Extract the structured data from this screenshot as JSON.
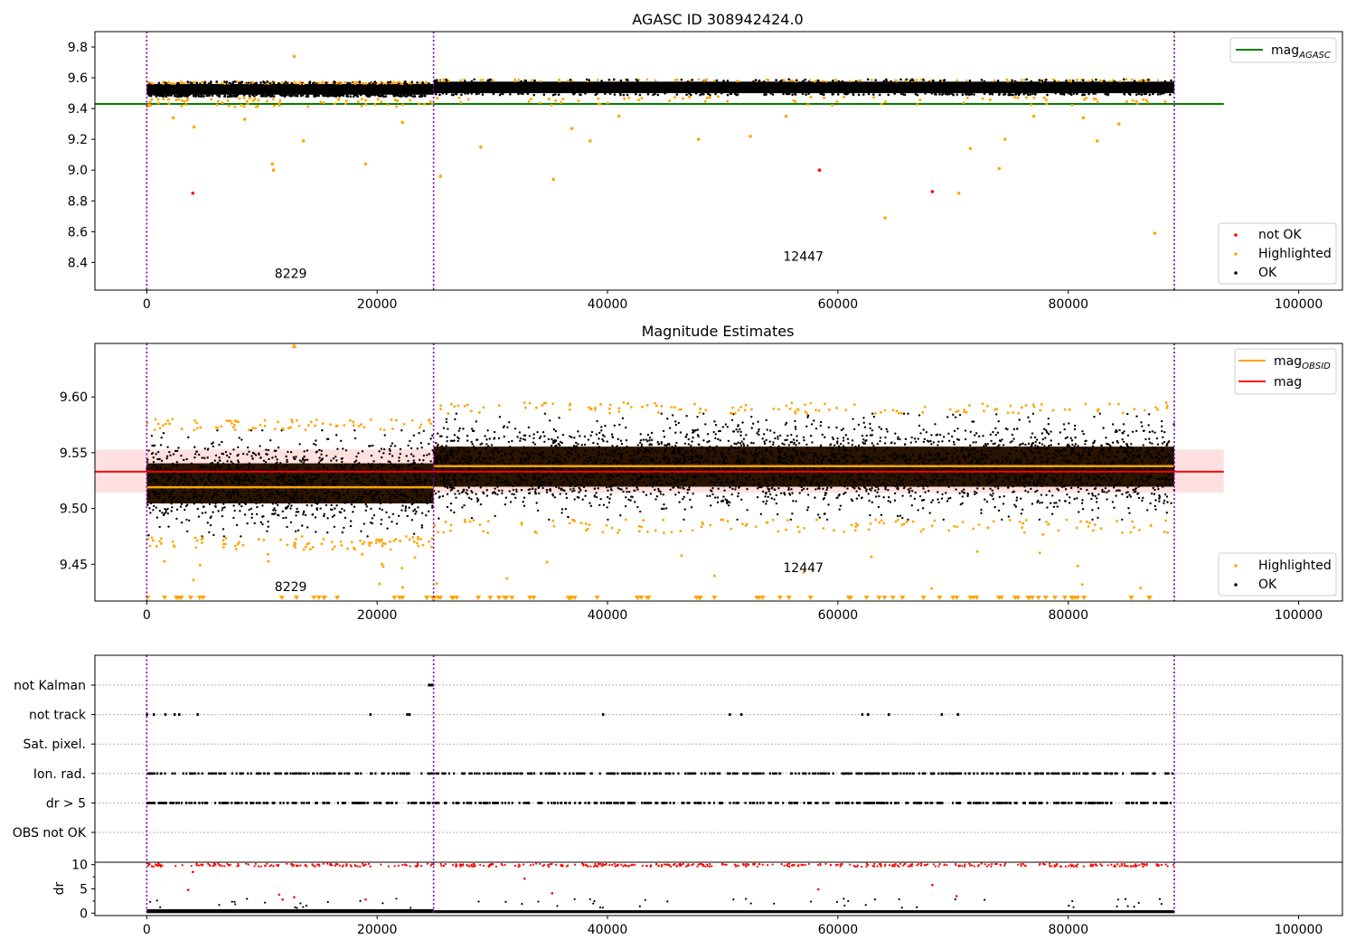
{
  "chart_data": [
    {
      "type": "scatter",
      "title": "AGASC ID 308942424.0",
      "xlim": [
        -4500,
        103800
      ],
      "ylim": [
        8.22,
        9.9
      ],
      "xticks": [
        "0",
        "20000",
        "40000",
        "60000",
        "80000",
        "100000"
      ],
      "yticks": [
        "8.4",
        "8.6",
        "8.8",
        "9.0",
        "9.2",
        "9.4",
        "9.6",
        "9.8"
      ],
      "obsid_boundaries": [
        0,
        24900,
        89200
      ],
      "obsid_labels": [
        {
          "text": "8229",
          "x": 12500,
          "y": 8.3
        },
        {
          "text": "12447",
          "x": 57000,
          "y": 8.41
        }
      ],
      "series": [
        {
          "name": "not OK",
          "color": "#ff0000",
          "points": [
            [
              4000,
              8.85
            ],
            [
              58400,
              9.0
            ],
            [
              68200,
              8.86
            ]
          ]
        },
        {
          "name": "Highlighted",
          "color": "#ffa500",
          "points": [
            [
              12800,
              9.74
            ],
            [
              10900,
              9.04
            ],
            [
              11000,
              9.0
            ],
            [
              19000,
              9.04
            ],
            [
              13600,
              9.19
            ],
            [
              4100,
              9.28
            ],
            [
              25500,
              8.96
            ],
            [
              35300,
              8.94
            ],
            [
              29000,
              9.15
            ],
            [
              38500,
              9.19
            ],
            [
              47900,
              9.2
            ],
            [
              52400,
              9.22
            ],
            [
              64100,
              8.69
            ],
            [
              70500,
              8.85
            ],
            [
              71500,
              9.14
            ],
            [
              74000,
              9.01
            ],
            [
              74500,
              9.2
            ],
            [
              82500,
              9.19
            ],
            [
              87500,
              8.59
            ],
            [
              2300,
              9.34
            ],
            [
              8500,
              9.33
            ],
            [
              22200,
              9.31
            ],
            [
              36900,
              9.27
            ],
            [
              41000,
              9.35
            ],
            [
              55500,
              9.35
            ],
            [
              77000,
              9.35
            ],
            [
              81300,
              9.34
            ],
            [
              84400,
              9.3
            ]
          ]
        },
        {
          "name": "OK",
          "color": "#000000"
        }
      ],
      "ok_band": [
        {
          "x_start": 0,
          "x_end": 24900,
          "y_low": 9.49,
          "y_high": 9.56
        },
        {
          "x_start": 24900,
          "x_end": 89200,
          "y_low": 9.5,
          "y_high": 9.575
        }
      ],
      "lines": [
        {
          "name": "mag_AGASC",
          "color": "#008000",
          "y": 9.43,
          "x_start": -4500,
          "x_end": 93500
        }
      ],
      "legends": [
        {
          "position": "upper right",
          "entries": [
            {
              "label": "mag",
              "sub": "AGASC",
              "color": "#008000",
              "kind": "line"
            }
          ]
        },
        {
          "position": "lower right",
          "entries": [
            {
              "label": "not OK",
              "color": "#ff0000",
              "kind": "dot"
            },
            {
              "label": "Highlighted",
              "color": "#ffa500",
              "kind": "dot"
            },
            {
              "label": "OK",
              "color": "#000000",
              "kind": "dot"
            }
          ]
        }
      ]
    },
    {
      "type": "scatter",
      "title": "Magnitude Estimates",
      "xlim": [
        -4500,
        103800
      ],
      "ylim": [
        9.417,
        9.648
      ],
      "xticks": [
        "0",
        "20000",
        "40000",
        "60000",
        "80000",
        "100000"
      ],
      "yticks": [
        "9.45",
        "9.50",
        "9.55",
        "9.60"
      ],
      "obsid_boundaries": [
        0,
        24900,
        89200
      ],
      "obsid_labels": [
        {
          "text": "8229",
          "x": 12500,
          "y": 9.426
        },
        {
          "text": "12447",
          "x": 57000,
          "y": 9.443
        }
      ],
      "series": [
        {
          "name": "Highlighted",
          "color": "#ffa500"
        },
        {
          "name": "OK",
          "color": "#000000"
        }
      ],
      "ok_band": [
        {
          "x_start": 0,
          "x_end": 24900,
          "y_low": 9.475,
          "y_high": 9.57
        },
        {
          "x_start": 24900,
          "x_end": 89200,
          "y_low": 9.49,
          "y_high": 9.585
        }
      ],
      "lines": [
        {
          "name": "mag_OBSID",
          "color": "#ffa500",
          "segments": [
            {
              "x_start": 0,
              "x_end": 24900,
              "y": 9.519
            },
            {
              "x_start": 24900,
              "x_end": 89200,
              "y": 9.538
            }
          ]
        },
        {
          "name": "mag",
          "color": "#ff0000",
          "y": 9.533,
          "x_start": -4500,
          "x_end": 93500,
          "band": [
            9.514,
            9.553
          ]
        }
      ],
      "legends": [
        {
          "position": "upper right",
          "entries": [
            {
              "label": "mag",
              "sub": "OBSID",
              "color": "#ffa500",
              "kind": "line"
            },
            {
              "label": "mag",
              "color": "#ff0000",
              "kind": "line"
            }
          ]
        },
        {
          "position": "lower right",
          "entries": [
            {
              "label": "Highlighted",
              "color": "#ffa500",
              "kind": "dot"
            },
            {
              "label": "OK",
              "color": "#000000",
              "kind": "dot"
            }
          ]
        }
      ]
    },
    {
      "type": "scatter",
      "title": "",
      "xlim": [
        -4500,
        103800
      ],
      "categories": [
        "not Kalman",
        "not track",
        "Sat. pixel.",
        "Ion. rad.",
        "dr > 5",
        "OBS not OK"
      ],
      "obsid_boundaries": [
        0,
        24900,
        89200
      ],
      "flag_points": {
        "not Kalman": [
          [
            24400,
            24900
          ]
        ],
        "not track": [
          0,
          600,
          1600,
          2400,
          2800,
          4400,
          19400,
          22600,
          22800,
          39600,
          50600,
          51600,
          62100,
          62600,
          64400,
          69000,
          70400
        ]
      }
    },
    {
      "type": "scatter",
      "title": "",
      "xlim": [
        -4500,
        103800
      ],
      "ylim": [
        -0.5,
        10.5
      ],
      "ylabel": "dr",
      "yticks": [
        "0",
        "5",
        "10"
      ],
      "obsid_boundaries": [
        0,
        24900,
        89200
      ]
    }
  ]
}
